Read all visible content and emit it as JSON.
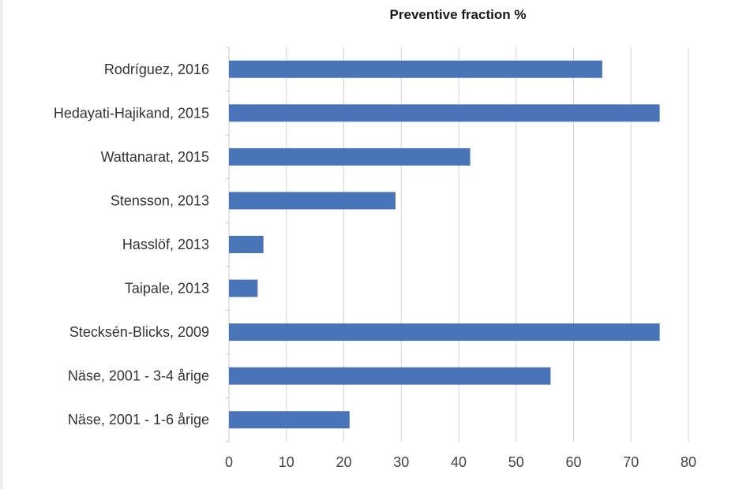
{
  "chart_data": {
    "type": "bar",
    "orientation": "horizontal",
    "title": "Preventive fraction %",
    "categories": [
      "Rodríguez, 2016",
      "Hedayati-Hajikand, 2015",
      "Wattanarat, 2015",
      "Stensson, 2013",
      "Hasslöf, 2013",
      "Taipale, 2013",
      "Stecksén-Blicks, 2009",
      "Näse, 2001 - 3-4 årige",
      "Näse, 2001 - 1-6 årige"
    ],
    "values": [
      65,
      75,
      42,
      29,
      6,
      5,
      75,
      56,
      21
    ],
    "xlim": [
      0,
      80
    ],
    "xticks": [
      "0",
      "10",
      "20",
      "30",
      "40",
      "50",
      "60",
      "70",
      "80"
    ],
    "xlabel": "",
    "ylabel": "",
    "grid": true,
    "legend": "none",
    "bar_color": "#4a74b8"
  }
}
